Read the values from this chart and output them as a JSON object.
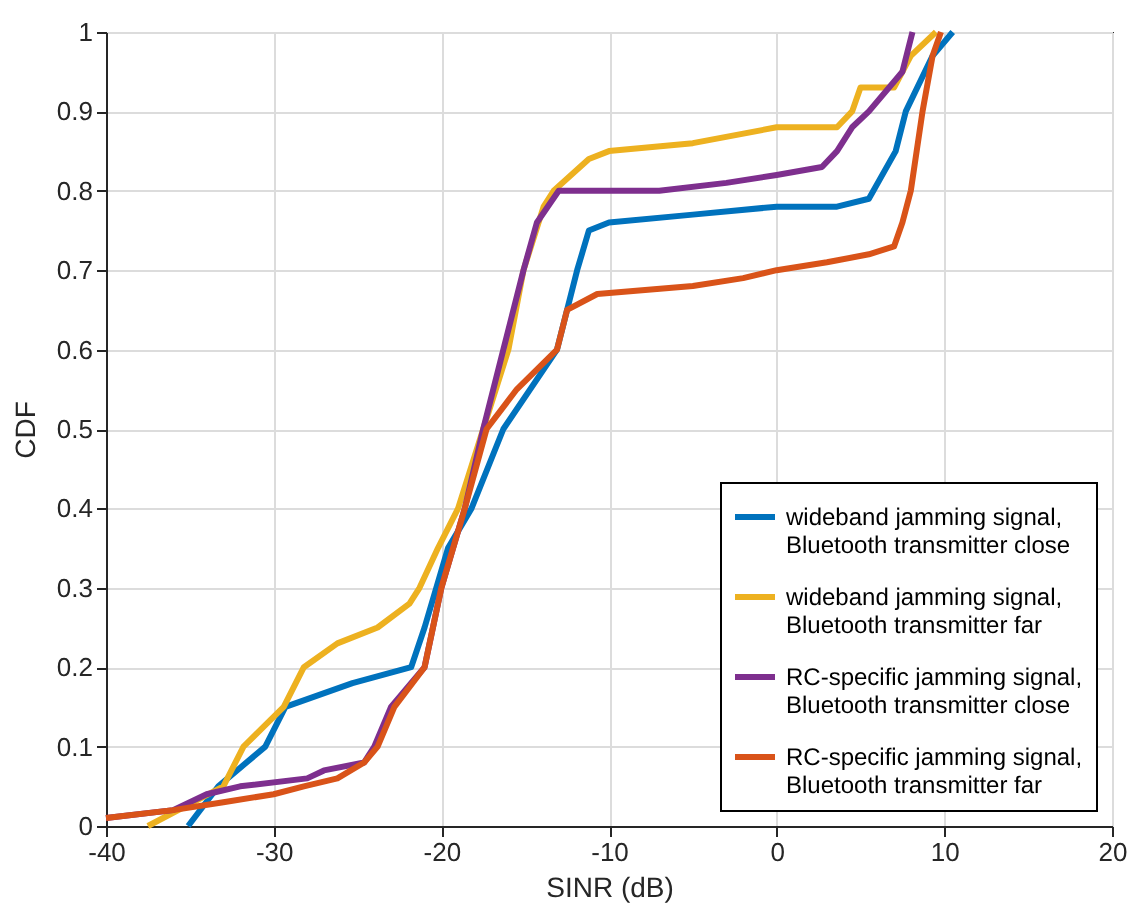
{
  "chart_data": {
    "type": "line",
    "xlabel": "SINR (dB)",
    "ylabel": "CDF",
    "xlim": [
      -40,
      20
    ],
    "xticks": [
      -40,
      -30,
      -20,
      -10,
      0,
      10,
      20
    ],
    "ylim": [
      0,
      1
    ],
    "yticks": [
      0,
      0.1,
      0.2,
      0.3,
      0.4,
      0.5,
      0.6,
      0.7,
      0.8,
      0.9,
      1
    ],
    "grid": true,
    "legend": "bottom right",
    "marker": "none",
    "line_style": "solid",
    "series": [
      {
        "name": "wideband jamming signal,\nBluetooth transmitter close",
        "color": "#0072bd",
        "x": [
          -35.1,
          -33.3,
          -30.5,
          -29.3,
          -25.3,
          -21.8,
          -21,
          -20.3,
          -19.6,
          -18.2,
          -16.3,
          -13.1,
          -11.9,
          -11.2,
          -10,
          -5,
          0,
          3.6,
          5.5,
          7.1,
          7.7,
          9.3,
          10.5
        ],
        "values": [
          0,
          0.05,
          0.1,
          0.15,
          0.18,
          0.2,
          0.25,
          0.3,
          0.35,
          0.4,
          0.5,
          0.6,
          0.7,
          0.75,
          0.76,
          0.77,
          0.78,
          0.78,
          0.79,
          0.85,
          0.9,
          0.97,
          1
        ]
      },
      {
        "name": "wideband jamming signal,\nBluetooth transmitter far",
        "color": "#edb120",
        "x": [
          -37.5,
          -33,
          -31.8,
          -29.4,
          -28.2,
          -26.2,
          -23.8,
          -21.9,
          -21.3,
          -20.2,
          -19,
          -17.5,
          -16,
          -15.1,
          -13.9,
          -13.3,
          -11.2,
          -10,
          -5,
          0,
          3.6,
          4.5,
          5,
          7,
          8,
          9.5
        ],
        "values": [
          0,
          0.05,
          0.1,
          0.15,
          0.2,
          0.23,
          0.25,
          0.28,
          0.3,
          0.35,
          0.4,
          0.5,
          0.6,
          0.7,
          0.78,
          0.8,
          0.84,
          0.85,
          0.86,
          0.88,
          0.88,
          0.9,
          0.93,
          0.93,
          0.97,
          1
        ]
      },
      {
        "name": "RC-specific jamming signal,\nBluetooth transmitter close",
        "color": "#7e2f8e",
        "x": [
          -40,
          -36,
          -34,
          -32,
          -28,
          -27,
          -24.6,
          -24,
          -23,
          -21,
          -20,
          -18.6,
          -17.5,
          -16.3,
          -15.1,
          -14.3,
          -13,
          -7,
          -3,
          0,
          2.7,
          3.6,
          4.5,
          5.5,
          7.5,
          8.1
        ],
        "values": [
          0.01,
          0.02,
          0.04,
          0.05,
          0.06,
          0.07,
          0.08,
          0.1,
          0.15,
          0.2,
          0.3,
          0.4,
          0.5,
          0.6,
          0.7,
          0.76,
          0.8,
          0.8,
          0.81,
          0.82,
          0.83,
          0.85,
          0.88,
          0.9,
          0.95,
          1
        ]
      },
      {
        "name": "RC-specific jamming signal,\nBluetooth transmitter far",
        "color": "#d95319",
        "x": [
          -40,
          -36,
          -33,
          -30,
          -28.2,
          -26.2,
          -24.6,
          -23.8,
          -22.8,
          -21,
          -20,
          -18.6,
          -17.3,
          -15.5,
          -13.1,
          -12.5,
          -10.7,
          -5,
          -2,
          0,
          3,
          5.5,
          7,
          7.5,
          8,
          8.7,
          9.3,
          9.8
        ],
        "values": [
          0.01,
          0.02,
          0.03,
          0.04,
          0.05,
          0.06,
          0.08,
          0.1,
          0.15,
          0.2,
          0.3,
          0.4,
          0.5,
          0.55,
          0.6,
          0.65,
          0.67,
          0.68,
          0.69,
          0.7,
          0.71,
          0.72,
          0.73,
          0.76,
          0.8,
          0.9,
          0.97,
          1
        ]
      }
    ]
  }
}
